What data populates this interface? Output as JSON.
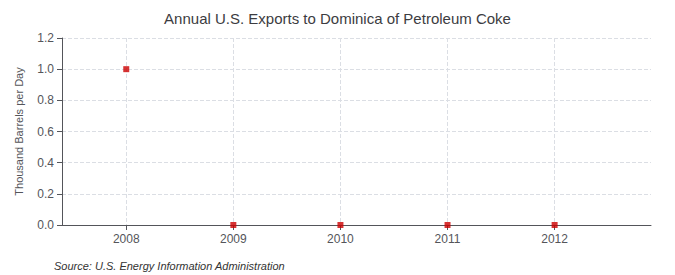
{
  "chart_data": {
    "type": "scatter",
    "title": "Annual U.S. Exports to Dominica of Petroleum Coke",
    "ylabel": "Thousand Barrels per Day",
    "annotations": [
      "Source: U.S. Energy Information Administration"
    ],
    "x": [
      2008,
      2009,
      2010,
      2011,
      2012
    ],
    "values": [
      1.0,
      0.0,
      0.0,
      0.0,
      0.0
    ],
    "color": "#cc0000",
    "marker": "square",
    "xlim": [
      2007.4,
      2012.9
    ],
    "xticks": [
      2008,
      2009,
      2010,
      2011,
      2012
    ],
    "ylim": [
      0.0,
      1.2
    ],
    "yticks": [
      {
        "value": 0.0,
        "label": "0.0"
      },
      0.2,
      0.4,
      0.6,
      0.8,
      {
        "value": 1.0,
        "label": "1.0"
      },
      1.2
    ],
    "grid": true
  }
}
